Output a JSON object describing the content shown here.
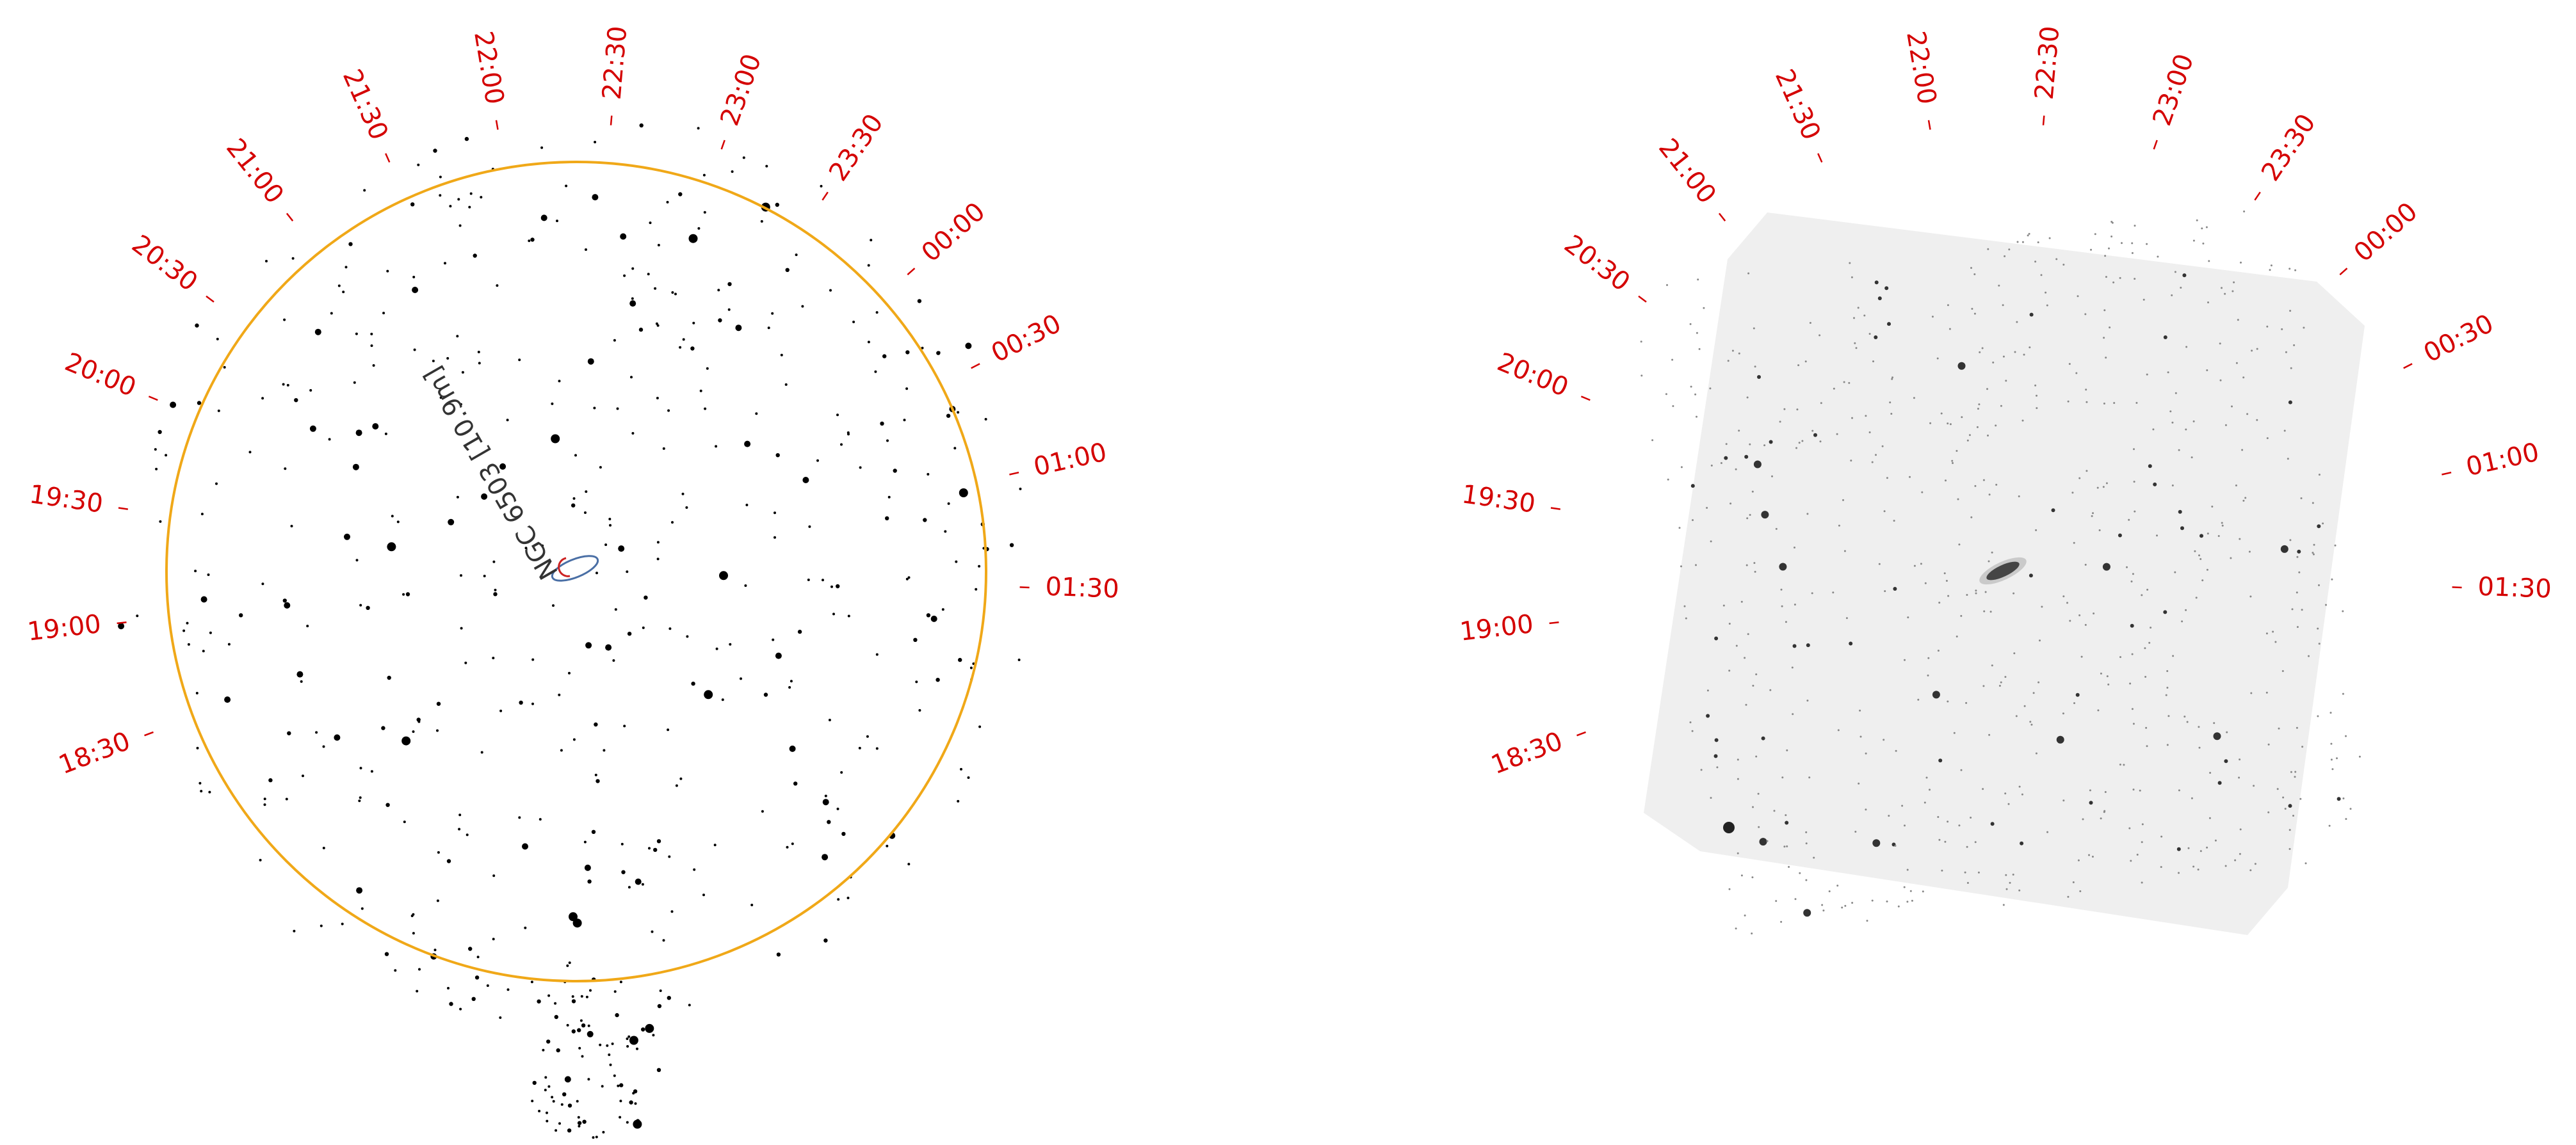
{
  "hour_labels": [
    "18:30",
    "19:00",
    "19:30",
    "20:00",
    "20:30",
    "21:00",
    "21:30",
    "22:00",
    "22:30",
    "23:00",
    "23:30",
    "00:00",
    "00:30",
    "01:00",
    "01:30"
  ],
  "target": {
    "label": "NGC 6503 [10.9m]"
  },
  "colors": {
    "hour_marks": "#d40000",
    "fov_circle": "#f0a818",
    "target_marker_outer": "#4a6fa5",
    "target_marker_inner": "#cc2222",
    "photo_background": "#efefef"
  },
  "panels": {
    "chart": {
      "type": "star-chart"
    },
    "photo": {
      "type": "sky-survey-image"
    }
  }
}
